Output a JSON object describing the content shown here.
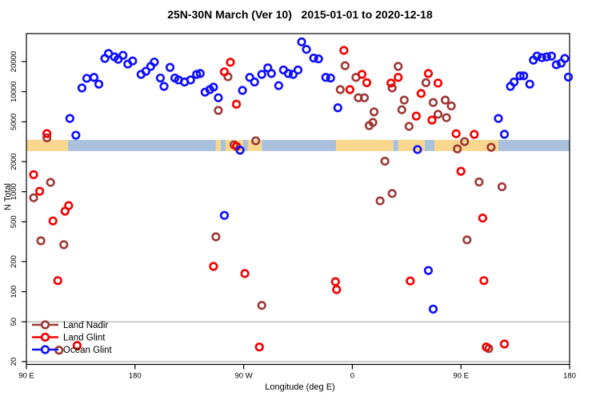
{
  "chart_data": {
    "type": "scatter",
    "title": "25N-30N March (Ver 10)   2015-01-01 to 2020-12-18",
    "xlabel": "Longitude (deg E)",
    "ylabel": "N Total",
    "x_axis": {
      "min": 90,
      "max": 540,
      "ticks": [
        {
          "lon": 90,
          "label": "90 E"
        },
        {
          "lon": 180,
          "label": "180"
        },
        {
          "lon": 270,
          "label": "90 W"
        },
        {
          "lon": 360,
          "label": "0"
        },
        {
          "lon": 450,
          "label": "90 E"
        },
        {
          "lon": 540,
          "label": "180"
        }
      ]
    },
    "y_axis": {
      "scale": "log",
      "min": 19,
      "max": 38000,
      "ticks": [
        20000,
        10000,
        5000,
        2000,
        1000,
        500,
        200,
        100,
        50,
        20
      ],
      "gridlines": [
        50,
        20
      ],
      "gridline_color": "#9a9a9a"
    },
    "surface_band": {
      "n_top": 3300,
      "n_bottom": 2550,
      "land_color": "#f9d78e",
      "ocean_color": "#aac1dd",
      "segments": [
        [
          "land",
          90,
          124.5
        ],
        [
          "ocean",
          124.5,
          247
        ],
        [
          "land",
          247,
          251
        ],
        [
          "ocean",
          251,
          255
        ],
        [
          "land",
          255,
          269.5
        ],
        [
          "ocean",
          269.5,
          273.5
        ],
        [
          "land",
          273.5,
          285
        ],
        [
          "ocean",
          285,
          346.5
        ],
        [
          "land",
          346.5,
          394
        ],
        [
          "ocean",
          394,
          398
        ],
        [
          "land",
          398,
          420
        ],
        [
          "ocean",
          420,
          428
        ],
        [
          "land",
          428,
          481
        ],
        [
          "ocean",
          481,
          540
        ]
      ]
    },
    "series": [
      {
        "name": "Land Nadir",
        "color": "#9e3a36",
        "points": [
          [
            107,
            3460
          ],
          [
            110,
            1240
          ],
          [
            96,
            870
          ],
          [
            102,
            323
          ],
          [
            121,
            295
          ],
          [
            117,
            26
          ],
          [
            247,
            354
          ],
          [
            249,
            6500
          ],
          [
            257,
            14100
          ],
          [
            262,
            2940
          ],
          [
            280,
            3230
          ],
          [
            285,
            73
          ],
          [
            350,
            10500
          ],
          [
            354,
            18200
          ],
          [
            363,
            13900
          ],
          [
            365,
            8700
          ],
          [
            370,
            8700
          ],
          [
            374,
            4580
          ],
          [
            377,
            4930
          ],
          [
            378,
            6280
          ],
          [
            383,
            810
          ],
          [
            387,
            2020
          ],
          [
            393,
            960
          ],
          [
            393,
            10900
          ],
          [
            398,
            17900
          ],
          [
            401,
            6600
          ],
          [
            403,
            8250
          ],
          [
            407,
            4500
          ],
          [
            421,
            12300
          ],
          [
            427,
            7800
          ],
          [
            431,
            5950
          ],
          [
            437,
            8250
          ],
          [
            438,
            5500
          ],
          [
            442,
            7200
          ],
          [
            447,
            2680
          ],
          [
            453,
            3170
          ],
          [
            455,
            330
          ],
          [
            465,
            1250
          ],
          [
            473,
            27
          ],
          [
            475,
            2780
          ],
          [
            484,
            1120
          ]
        ]
      },
      {
        "name": "Land Glint",
        "color": "#f40000",
        "points": [
          [
            107,
            3810
          ],
          [
            96,
            1480
          ],
          [
            101,
            1010
          ],
          [
            125,
            726
          ],
          [
            122,
            638
          ],
          [
            112,
            510
          ],
          [
            116,
            129
          ],
          [
            132,
            29
          ],
          [
            245,
            179
          ],
          [
            254,
            15800
          ],
          [
            259,
            19700
          ],
          [
            264,
            7500
          ],
          [
            264,
            2840
          ],
          [
            271,
            152
          ],
          [
            283,
            28
          ],
          [
            346,
            126
          ],
          [
            347,
            105
          ],
          [
            353,
            25900
          ],
          [
            358,
            10500
          ],
          [
            368,
            14900
          ],
          [
            372,
            12300
          ],
          [
            392,
            12200
          ],
          [
            398,
            13900
          ],
          [
            408,
            128
          ],
          [
            413,
            5700
          ],
          [
            417,
            9600
          ],
          [
            423,
            15200
          ],
          [
            426,
            5200
          ],
          [
            431,
            12200
          ],
          [
            446,
            3800
          ],
          [
            450,
            1600
          ],
          [
            461,
            3740
          ],
          [
            468,
            545
          ],
          [
            469,
            129
          ],
          [
            471,
            28
          ],
          [
            486,
            30
          ]
        ]
      },
      {
        "name": "Ocean Glint",
        "color": "#0f0fff",
        "points": [
          [
            126,
            5400
          ],
          [
            131,
            3670
          ],
          [
            136,
            10900
          ],
          [
            140,
            13600
          ],
          [
            146,
            13900
          ],
          [
            150,
            11900
          ],
          [
            155,
            21500
          ],
          [
            158,
            24100
          ],
          [
            163,
            22300
          ],
          [
            166,
            21100
          ],
          [
            170,
            23100
          ],
          [
            174,
            18900
          ],
          [
            178,
            20300
          ],
          [
            185,
            14900
          ],
          [
            189,
            16000
          ],
          [
            193,
            17900
          ],
          [
            196,
            19800
          ],
          [
            201,
            13700
          ],
          [
            204,
            11300
          ],
          [
            209,
            17500
          ],
          [
            213,
            13700
          ],
          [
            216,
            13100
          ],
          [
            221,
            12500
          ],
          [
            226,
            13100
          ],
          [
            231,
            14900
          ],
          [
            234,
            15200
          ],
          [
            238,
            9900
          ],
          [
            242,
            10500
          ],
          [
            245,
            11100
          ],
          [
            249,
            8700
          ],
          [
            254,
            580
          ],
          [
            267,
            2600
          ],
          [
            269,
            10300
          ],
          [
            275,
            13900
          ],
          [
            279,
            12500
          ],
          [
            285,
            14900
          ],
          [
            290,
            17300
          ],
          [
            293,
            15200
          ],
          [
            299,
            11500
          ],
          [
            303,
            16500
          ],
          [
            307,
            15200
          ],
          [
            311,
            14900
          ],
          [
            315,
            16500
          ],
          [
            318,
            31500
          ],
          [
            322,
            26500
          ],
          [
            328,
            21700
          ],
          [
            332,
            21300
          ],
          [
            338,
            13900
          ],
          [
            342,
            13700
          ],
          [
            348,
            6900
          ],
          [
            414,
            2640
          ],
          [
            423,
            163
          ],
          [
            427,
            67
          ],
          [
            481,
            5400
          ],
          [
            486,
            3750
          ],
          [
            491,
            11300
          ],
          [
            494,
            12500
          ],
          [
            499,
            14400
          ],
          [
            502,
            14400
          ],
          [
            507,
            11900
          ],
          [
            510,
            20700
          ],
          [
            513,
            22700
          ],
          [
            517,
            21900
          ],
          [
            521,
            22300
          ],
          [
            525,
            22700
          ],
          [
            529,
            18600
          ],
          [
            533,
            19300
          ],
          [
            536,
            21500
          ],
          [
            539,
            14000
          ]
        ]
      }
    ],
    "legend": {
      "position": "bottom-left",
      "items": [
        "Land Nadir",
        "Land Glint",
        "Ocean Glint"
      ]
    }
  }
}
